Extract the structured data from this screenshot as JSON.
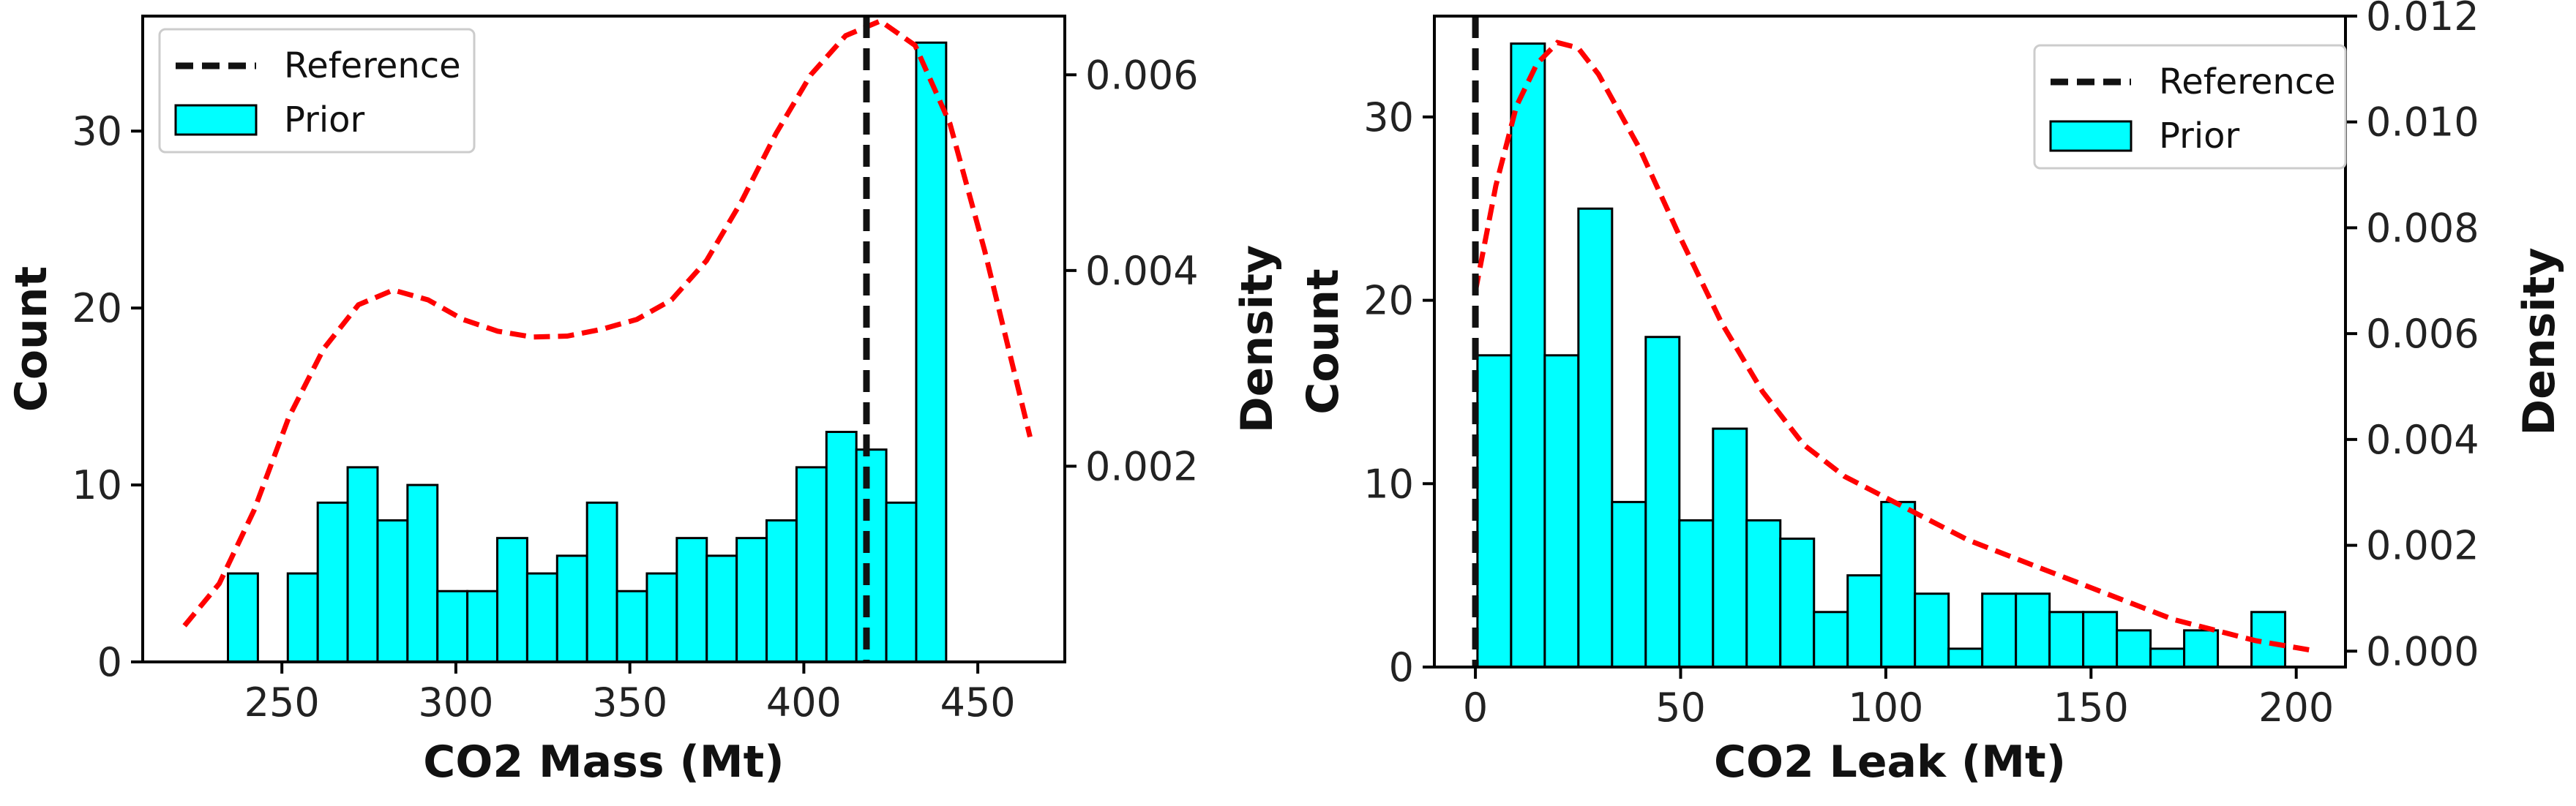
{
  "chart_data": [
    {
      "type": "bar",
      "title": "",
      "xlabel": "CO2 Mass (Mt)",
      "ylabel": "Count",
      "y2label": "Density",
      "xlim": [
        210,
        475
      ],
      "ylim": [
        0,
        36.5
      ],
      "y2lim": [
        0,
        0.0066
      ],
      "xticks": [
        250,
        300,
        350,
        400,
        450
      ],
      "yticks": [
        0,
        10,
        20,
        30
      ],
      "y2ticks": [
        0.002,
        0.004,
        0.006
      ],
      "y2tick_labels": [
        "0.002",
        "0.004",
        "0.006"
      ],
      "bin_width": 8.6,
      "bins": [
        {
          "x": 234.5,
          "count": 5
        },
        {
          "x": 251.7,
          "count": 5
        },
        {
          "x": 260.3,
          "count": 9
        },
        {
          "x": 268.9,
          "count": 11
        },
        {
          "x": 277.5,
          "count": 8
        },
        {
          "x": 286.1,
          "count": 10
        },
        {
          "x": 294.7,
          "count": 4
        },
        {
          "x": 303.3,
          "count": 4
        },
        {
          "x": 311.9,
          "count": 7
        },
        {
          "x": 320.5,
          "count": 5
        },
        {
          "x": 329.1,
          "count": 6
        },
        {
          "x": 337.7,
          "count": 9
        },
        {
          "x": 346.3,
          "count": 4
        },
        {
          "x": 354.9,
          "count": 5
        },
        {
          "x": 363.5,
          "count": 7
        },
        {
          "x": 372.1,
          "count": 6
        },
        {
          "x": 380.7,
          "count": 7
        },
        {
          "x": 389.3,
          "count": 8
        },
        {
          "x": 397.9,
          "count": 11
        },
        {
          "x": 406.5,
          "count": 13
        },
        {
          "x": 415.1,
          "count": 12
        },
        {
          "x": 423.7,
          "count": 9
        },
        {
          "x": 432.3,
          "count": 35
        }
      ],
      "reference_x": 418,
      "kde": {
        "x": [
          222,
          232,
          242,
          252,
          262,
          272,
          282,
          292,
          302,
          312,
          322,
          332,
          342,
          352,
          362,
          372,
          382,
          392,
          402,
          412,
          422,
          432,
          442,
          452,
          465
        ],
        "y": [
          0.00037,
          0.0008,
          0.00155,
          0.0025,
          0.0032,
          0.00365,
          0.0038,
          0.0037,
          0.0035,
          0.00338,
          0.00332,
          0.00333,
          0.0034,
          0.0035,
          0.0037,
          0.0041,
          0.0047,
          0.0054,
          0.006,
          0.0064,
          0.00655,
          0.0063,
          0.0055,
          0.0042,
          0.0023
        ]
      },
      "legend": {
        "position": "top-left",
        "entries": [
          "Reference",
          "Prior"
        ]
      }
    },
    {
      "type": "bar",
      "title": "",
      "xlabel": "CO2 Leak (Mt)",
      "ylabel": "Count",
      "y2label": "Density",
      "xlim": [
        -10,
        212
      ],
      "ylim": [
        0,
        35.5
      ],
      "y2lim": [
        -0.0003,
        0.012
      ],
      "xticks": [
        0,
        50,
        100,
        150,
        200
      ],
      "yticks": [
        0,
        10,
        20,
        30
      ],
      "y2ticks": [
        0.0,
        0.002,
        0.004,
        0.006,
        0.008,
        0.01,
        0.012
      ],
      "y2tick_labels": [
        "0.000",
        "0.002",
        "0.004",
        "0.006",
        "0.008",
        "0.010",
        "0.012"
      ],
      "bin_width": 8.2,
      "bins": [
        {
          "x": 0.5,
          "count": 17
        },
        {
          "x": 8.7,
          "count": 34
        },
        {
          "x": 16.9,
          "count": 17
        },
        {
          "x": 25.1,
          "count": 25
        },
        {
          "x": 33.3,
          "count": 9
        },
        {
          "x": 41.5,
          "count": 18
        },
        {
          "x": 49.7,
          "count": 8
        },
        {
          "x": 57.9,
          "count": 13
        },
        {
          "x": 66.1,
          "count": 8
        },
        {
          "x": 74.3,
          "count": 7
        },
        {
          "x": 82.5,
          "count": 3
        },
        {
          "x": 90.7,
          "count": 5
        },
        {
          "x": 98.9,
          "count": 9
        },
        {
          "x": 107.1,
          "count": 4
        },
        {
          "x": 115.3,
          "count": 1
        },
        {
          "x": 123.5,
          "count": 4
        },
        {
          "x": 131.7,
          "count": 4
        },
        {
          "x": 139.9,
          "count": 3
        },
        {
          "x": 148.1,
          "count": 3
        },
        {
          "x": 156.3,
          "count": 2
        },
        {
          "x": 164.5,
          "count": 1
        },
        {
          "x": 172.7,
          "count": 2
        },
        {
          "x": 189.1,
          "count": 3
        }
      ],
      "reference_x": 0,
      "kde": {
        "x": [
          0,
          5,
          10,
          15,
          20,
          25,
          30,
          40,
          50,
          60,
          70,
          80,
          90,
          100,
          110,
          120,
          130,
          140,
          150,
          160,
          170,
          180,
          190,
          205
        ],
        "y": [
          0.0068,
          0.0088,
          0.0103,
          0.0111,
          0.0115,
          0.0114,
          0.0109,
          0.0095,
          0.0078,
          0.0062,
          0.0049,
          0.0039,
          0.0033,
          0.0029,
          0.0025,
          0.0021,
          0.0018,
          0.0015,
          0.0012,
          0.0009,
          0.0006,
          0.0004,
          0.0002,
          0.0
        ]
      },
      "legend": {
        "position": "top-right",
        "entries": [
          "Reference",
          "Prior"
        ]
      }
    }
  ]
}
